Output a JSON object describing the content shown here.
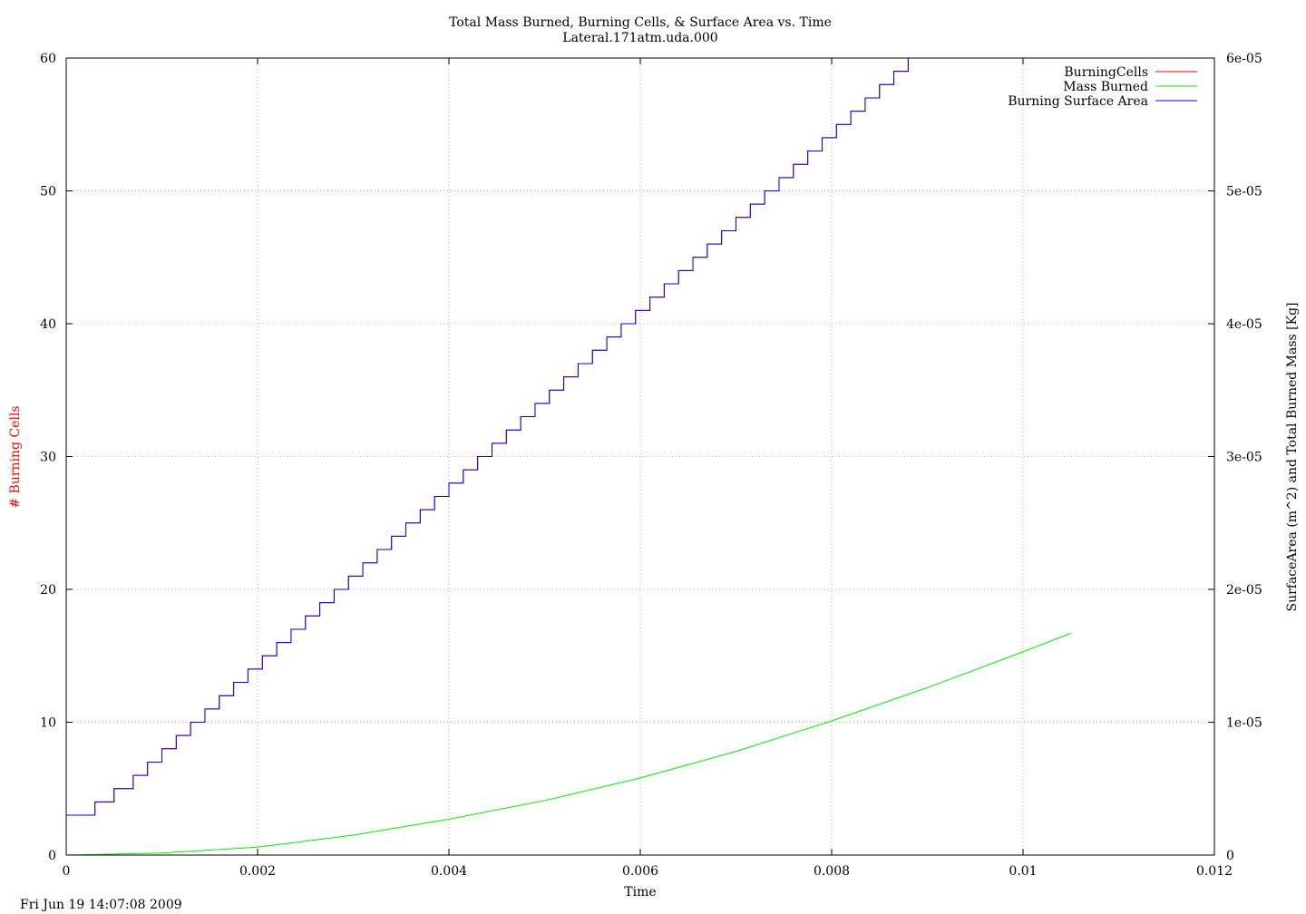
{
  "chart_data": {
    "type": "line",
    "title": "Total Mass Burned, Burning Cells, & Surface Area vs. Time",
    "subtitle": "Lateral.171atm.uda.000",
    "xlabel": "Time",
    "ylabel_left": "# Burning Cells",
    "ylabel_right": "SurfaceArea (m^2) and Total Burned Mass [Kg]",
    "xlim": [
      0,
      0.012
    ],
    "ylim_left": [
      0,
      60
    ],
    "ylim_right": [
      0,
      6e-05
    ],
    "x_ticks": [
      "0",
      "0.002",
      "0.004",
      "0.006",
      "0.008",
      "0.01",
      "0.012"
    ],
    "y_ticks_left": [
      "0",
      "10",
      "20",
      "30",
      "40",
      "50",
      "60"
    ],
    "y_ticks_right": [
      "0",
      "1e-05",
      "2e-05",
      "3e-05",
      "4e-05",
      "5e-05",
      "6e-05"
    ],
    "grid": true,
    "legend_position": "top-right",
    "series": [
      {
        "name": "BurningCells",
        "color": "#ff0000",
        "axis": "left",
        "style": "steps",
        "x": [
          0.0,
          0.0003,
          0.0005,
          0.0007,
          0.00085,
          0.001,
          0.00115,
          0.0013,
          0.00145,
          0.0016,
          0.00175,
          0.0019,
          0.00205,
          0.0022,
          0.00235,
          0.0025,
          0.00265,
          0.0028,
          0.00295,
          0.0031,
          0.00325,
          0.0034,
          0.00355,
          0.0037,
          0.00385,
          0.004,
          0.00415,
          0.0043,
          0.00445,
          0.0046,
          0.00475,
          0.0049,
          0.00505,
          0.0052,
          0.00535,
          0.0055,
          0.00565,
          0.0058,
          0.00595,
          0.0061,
          0.00625,
          0.0064,
          0.00655,
          0.0067,
          0.00685,
          0.007,
          0.00715,
          0.0073,
          0.00745,
          0.0076,
          0.00775,
          0.0079,
          0.00805,
          0.0082,
          0.00835,
          0.0085,
          0.00865,
          0.0088,
          0.0089,
          0.0105
        ],
        "y": [
          3,
          4,
          5,
          6,
          7,
          8,
          9,
          10,
          11,
          12,
          13,
          14,
          15,
          16,
          17,
          18,
          19,
          20,
          21,
          22,
          23,
          24,
          25,
          26,
          27,
          28,
          29,
          30,
          31,
          32,
          33,
          34,
          35,
          36,
          37,
          38,
          39,
          40,
          41,
          42,
          43,
          44,
          45,
          46,
          47,
          48,
          49,
          50,
          51,
          52,
          53,
          54,
          55,
          56,
          57,
          58,
          59,
          60,
          60,
          60
        ]
      },
      {
        "name": "Mass Burned",
        "color": "#00ee00",
        "axis": "right",
        "style": "line",
        "x": [
          0.0,
          0.001,
          0.002,
          0.003,
          0.004,
          0.005,
          0.006,
          0.007,
          0.008,
          0.009,
          0.01,
          0.0105
        ],
        "y": [
          0.0,
          1.5e-07,
          6e-07,
          1.5e-06,
          2.7e-06,
          4.1e-06,
          5.8e-06,
          7.8e-06,
          1.01e-05,
          1.26e-05,
          1.53e-05,
          1.67e-05
        ]
      },
      {
        "name": "Burning Surface Area",
        "color": "#0000ff",
        "axis": "right",
        "style": "steps",
        "x": [
          0.0,
          0.0003,
          0.0005,
          0.0007,
          0.00085,
          0.001,
          0.00115,
          0.0013,
          0.00145,
          0.0016,
          0.00175,
          0.0019,
          0.00205,
          0.0022,
          0.00235,
          0.0025,
          0.00265,
          0.0028,
          0.00295,
          0.0031,
          0.00325,
          0.0034,
          0.00355,
          0.0037,
          0.00385,
          0.004,
          0.00415,
          0.0043,
          0.00445,
          0.0046,
          0.00475,
          0.0049,
          0.00505,
          0.0052,
          0.00535,
          0.0055,
          0.00565,
          0.0058,
          0.00595,
          0.0061,
          0.00625,
          0.0064,
          0.00655,
          0.0067,
          0.00685,
          0.007,
          0.00715,
          0.0073,
          0.00745,
          0.0076,
          0.00775,
          0.0079,
          0.00805,
          0.0082,
          0.00835,
          0.0085,
          0.00865,
          0.0088,
          0.0089,
          0.0105
        ],
        "y": [
          3e-06,
          4e-06,
          5e-06,
          6e-06,
          7e-06,
          8e-06,
          9e-06,
          1e-05,
          1.1e-05,
          1.2e-05,
          1.3e-05,
          1.4e-05,
          1.5e-05,
          1.6e-05,
          1.7e-05,
          1.8e-05,
          1.9e-05,
          2e-05,
          2.1e-05,
          2.2e-05,
          2.3e-05,
          2.4e-05,
          2.5e-05,
          2.6e-05,
          2.7e-05,
          2.8e-05,
          2.9e-05,
          3e-05,
          3.1e-05,
          3.2e-05,
          3.3e-05,
          3.4e-05,
          3.5e-05,
          3.6e-05,
          3.7e-05,
          3.8e-05,
          3.9e-05,
          4e-05,
          4.1e-05,
          4.2e-05,
          4.3e-05,
          4.4e-05,
          4.5e-05,
          4.6e-05,
          4.7e-05,
          4.8e-05,
          4.9e-05,
          5e-05,
          5.1e-05,
          5.2e-05,
          5.3e-05,
          5.4e-05,
          5.5e-05,
          5.6e-05,
          5.7e-05,
          5.8e-05,
          5.9e-05,
          6e-05,
          6e-05,
          6e-05
        ]
      }
    ]
  },
  "footer": {
    "timestamp": "Fri Jun 19 14:07:08 2009"
  }
}
